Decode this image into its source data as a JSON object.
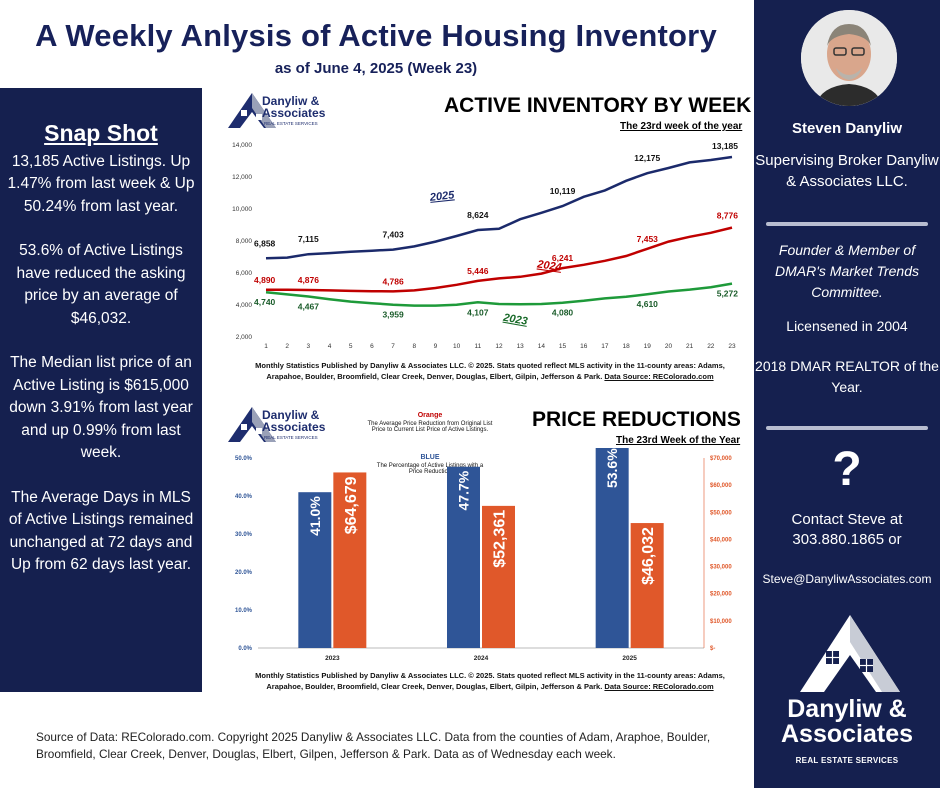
{
  "header": {
    "title": "A Weekly Anlysis of Active Housing Inventory",
    "subtitle": "as of June 4, 2025 (Week 23)"
  },
  "snapshot": {
    "heading": "Snap Shot",
    "p1": "13,185 Active Listings. Up 1.47% from last week & Up 50.24% from last year.",
    "p2": "53.6% of Active Listings have reduced the asking price by an average of $46,032.",
    "p3": "The Median list price of an Active Listing is $615,000 down 3.91% from last year and up 0.99% from last week.",
    "p4": "The Average Days in MLS of Active Listings remained unchanged at 72 days and Up from 62 days last year."
  },
  "profile": {
    "name": "Steven Danyliw",
    "role": "Supervising Broker Danyliw & Associates LLC.",
    "founder": "Founder & Member of DMAR's Market Trends Committee.",
    "licensed": "Licensened in 2004",
    "award": "2018 DMAR REALTOR of the Year.",
    "question": "?",
    "contact": "Contact Steve at 303.880.1865 or",
    "email": "Steve@DanyliwAssociates.com",
    "brand_line1": "Danyliw &",
    "brand_line2": "Associates",
    "brand_sub": "REAL ESTATE SERVICES"
  },
  "brand_small": {
    "line1": "Danyliw &",
    "line2": "Associates",
    "sub": "REAL ESTATE SERVICES"
  },
  "colors": {
    "navy": "#15204f",
    "blue_line": "#1b2a6b",
    "red_line": "#c00000",
    "green_line": "#1e9a3a",
    "bar_blue": "#2f5597",
    "bar_orange": "#e0582a"
  },
  "chart_data": [
    {
      "type": "line",
      "title": "ACTIVE INVENTORY BY WEEK",
      "subtitle": "The 23rd week of the year",
      "x": [
        1,
        2,
        3,
        4,
        5,
        6,
        7,
        8,
        9,
        10,
        11,
        12,
        13,
        14,
        15,
        16,
        17,
        18,
        19,
        20,
        21,
        22,
        23
      ],
      "ylim": [
        2000,
        14000
      ],
      "yticks": [
        "2,000",
        "4,000",
        "6,000",
        "8,000",
        "10,000",
        "12,000",
        "14,000"
      ],
      "series": [
        {
          "name": "2025",
          "values": [
            6858,
            6900,
            7115,
            7180,
            7260,
            7330,
            7403,
            7600,
            7900,
            8250,
            8624,
            8700,
            9300,
            9700,
            10119,
            10700,
            11100,
            11700,
            12175,
            12500,
            12850,
            13000,
            13185
          ]
        },
        {
          "name": "2024",
          "values": [
            4890,
            4885,
            4876,
            4850,
            4820,
            4800,
            4786,
            4850,
            5000,
            5200,
            5446,
            5600,
            5700,
            5900,
            6241,
            6450,
            6700,
            7000,
            7453,
            7900,
            8200,
            8450,
            8776
          ]
        },
        {
          "name": "2023",
          "values": [
            4740,
            4600,
            4467,
            4300,
            4150,
            4050,
            3959,
            3900,
            3900,
            3950,
            4107,
            4000,
            3980,
            4000,
            4080,
            4200,
            4350,
            4450,
            4610,
            4780,
            4900,
            5050,
            5272
          ]
        }
      ],
      "labels": {
        "s2025": [
          "6,858",
          "7,115",
          "7,403",
          "8,624",
          "10,119",
          "12,175",
          "13,185"
        ],
        "s2024": [
          "4,890",
          "4,876",
          "4,786",
          "5,446",
          "6,241",
          "7,453",
          "8,776"
        ],
        "s2023": [
          "4,740",
          "4,467",
          "3,959",
          "4,107",
          "4,080",
          "4,610",
          "5,272"
        ]
      },
      "note": "Monthly Statistics Published by Danyliw & Associates LLC. © 2025. Stats quoted reflect MLS activity in the 11-county areas: Adams, Arapahoe, Boulder, Broomfield, Clear Creek, Denver, Douglas, Elbert, Gilpin, Jefferson & Park.",
      "note_source_label": "Data Source: REColorado.com"
    },
    {
      "type": "bar",
      "title": "PRICE REDUCTIONS",
      "subtitle": "The 23rd Week of the Year",
      "categories": [
        "2023",
        "2024",
        "2025"
      ],
      "series": [
        {
          "name": "BLUE",
          "description": "The Percentage of Active Listings with a Price Reduction",
          "values": [
            41.0,
            47.7,
            53.6
          ],
          "labels": [
            "41.0%",
            "47.7%",
            "53.6%"
          ]
        },
        {
          "name": "Orange",
          "description": "The Average Price Reduction from Original List Price to Current List Price of Active Listings.",
          "values": [
            64679,
            52361,
            46032
          ],
          "labels": [
            "$64,679",
            "$52,361",
            "$46,032"
          ]
        }
      ],
      "ylim_left": [
        0,
        50
      ],
      "yticks_left": [
        "0.0%",
        "10.0%",
        "20.0%",
        "30.0%",
        "40.0%",
        "50.0%"
      ],
      "ylim_right": [
        0,
        70000
      ],
      "yticks_right": [
        "$-",
        "$10,000",
        "$20,000",
        "$30,000",
        "$40,000",
        "$50,000",
        "$60,000",
        "$70,000"
      ],
      "note": "Monthly Statistics Published by Danyliw & Associates LLC. © 2025. Stats quoted reflect MLS activity in the 11-county areas: Adams, Arapahoe, Boulder, Broomfield, Clear Creek, Denver, Douglas, Elbert, Gilpin, Jefferson & Park.",
      "note_source_label": "Data Source: REColorado.com"
    }
  ],
  "footer": {
    "source": "Source of Data: REColorado.com. Copyright 2025 Danyliw & Associates LLC. Data from the counties of Adam, Araphoe, Boulder, Broomfield, Clear Creek, Denver, Douglas, Elbert, Gilpen, Jefferson & Park. Data as of Wednesday each week."
  }
}
